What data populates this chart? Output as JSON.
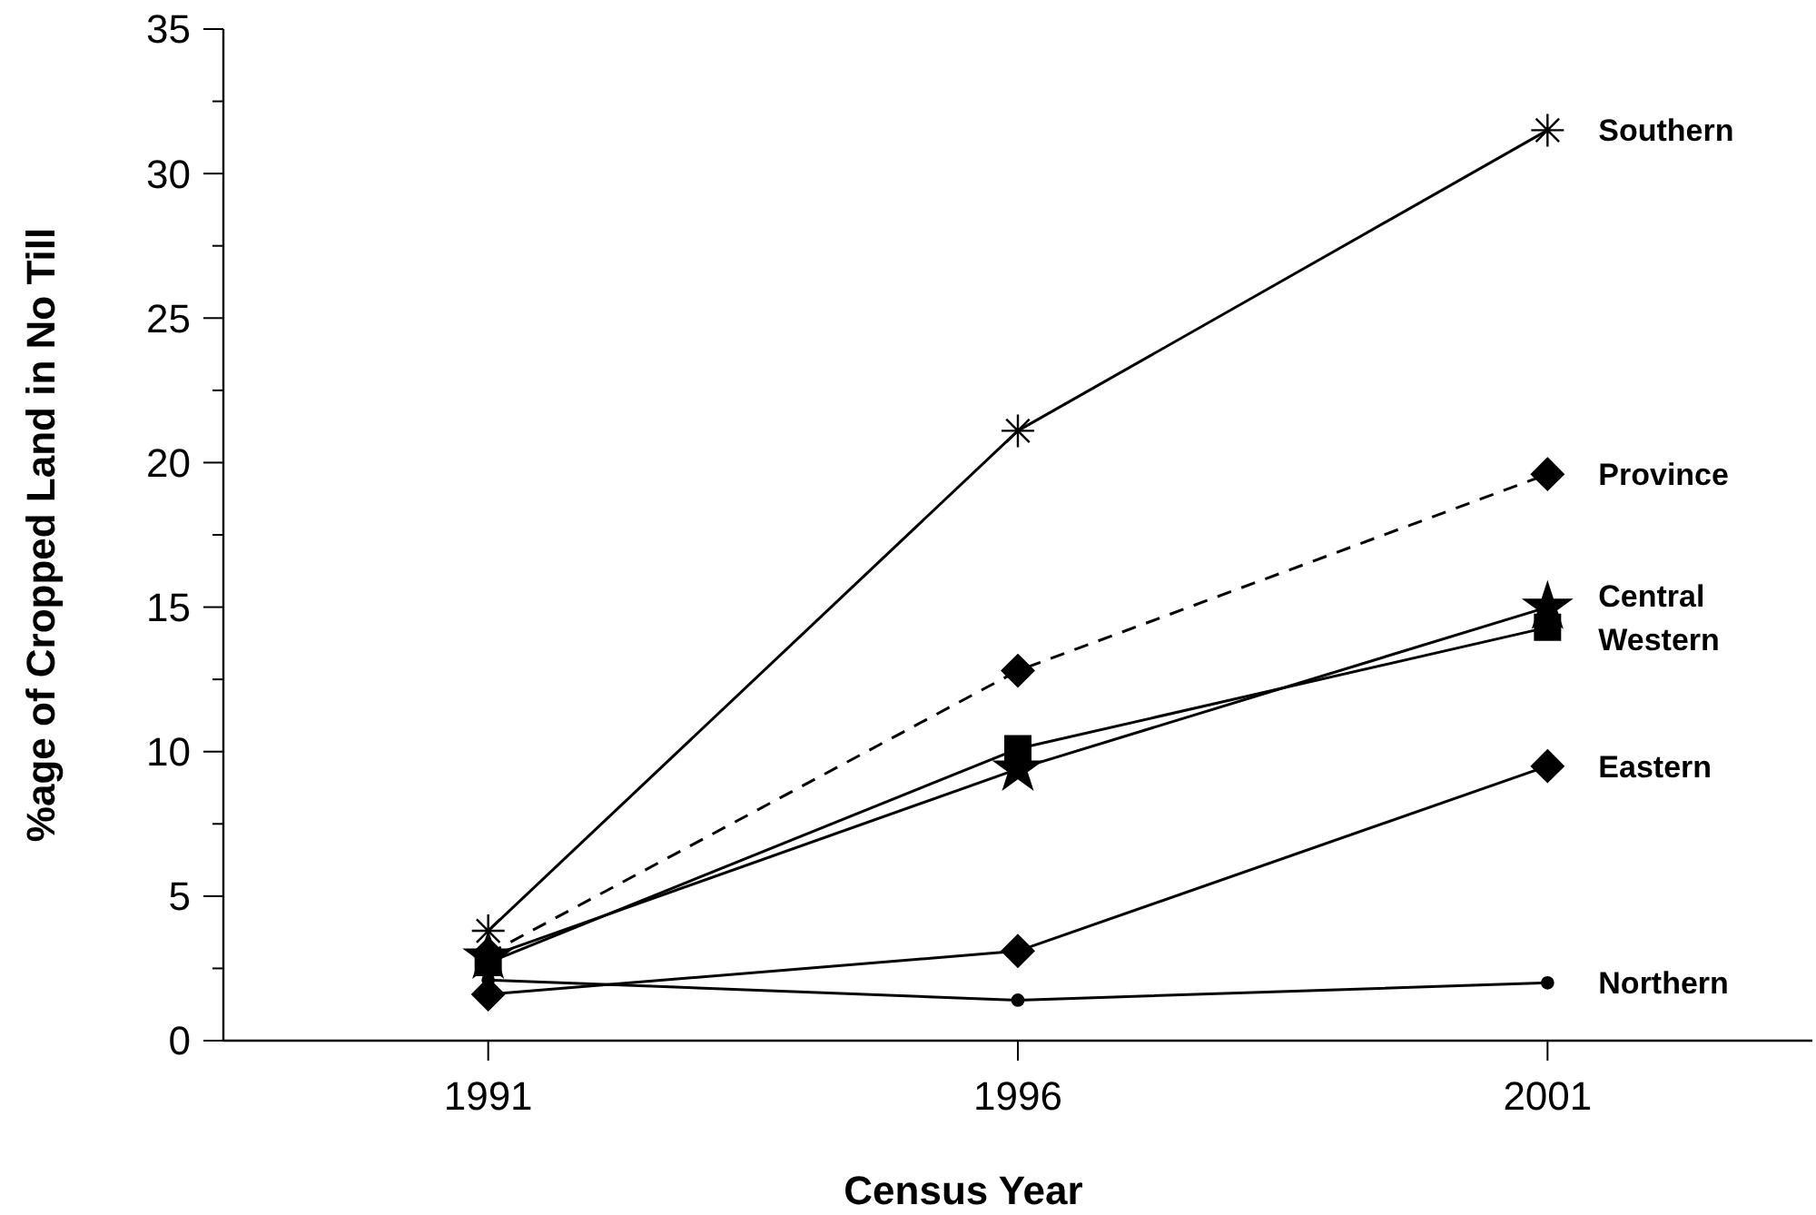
{
  "chart_data": {
    "type": "line",
    "xlabel": "Census Year",
    "ylabel": "%age of Cropped Land in No Till",
    "x": [
      1991,
      1996,
      2001
    ],
    "xlim": [
      1988.5,
      2003.5
    ],
    "xticks": [
      1991,
      1996,
      2001
    ],
    "ylim": [
      0,
      35
    ],
    "yticks": [
      0,
      {
        "value": 2.5,
        "label": null
      },
      5,
      {
        "value": 7.5,
        "label": null
      },
      10,
      {
        "value": 12.5,
        "label": null
      },
      15,
      {
        "value": 17.5,
        "label": null
      },
      20,
      {
        "value": 22.5,
        "label": null
      },
      25,
      {
        "value": 27.5,
        "label": null
      },
      30,
      {
        "value": 32.5,
        "label": null
      },
      35
    ],
    "grid": false,
    "series": [
      {
        "name": "Southern",
        "color": "#000000",
        "marker": "cross",
        "line_style": "solid",
        "values": [
          3.8,
          21.1,
          31.5
        ]
      },
      {
        "name": "Province",
        "color": "#000000",
        "marker": "diamond",
        "line_style": "dashed",
        "values": [
          3.0,
          12.8,
          19.6
        ]
      },
      {
        "name": "Central",
        "color": "#000000",
        "marker": "star",
        "line_style": "solid",
        "values": [
          2.9,
          9.4,
          15.0
        ]
      },
      {
        "name": "Western",
        "color": "#000000",
        "marker": "square",
        "line_style": "solid",
        "values": [
          2.7,
          10.1,
          14.3
        ]
      },
      {
        "name": "Eastern",
        "color": "#000000",
        "marker": "diamond",
        "line_style": "solid",
        "values": [
          1.6,
          3.1,
          9.5
        ]
      },
      {
        "name": "Northern",
        "color": "#000000",
        "marker": "circle",
        "line_style": "solid",
        "values": [
          2.1,
          1.4,
          2.0
        ]
      }
    ]
  }
}
